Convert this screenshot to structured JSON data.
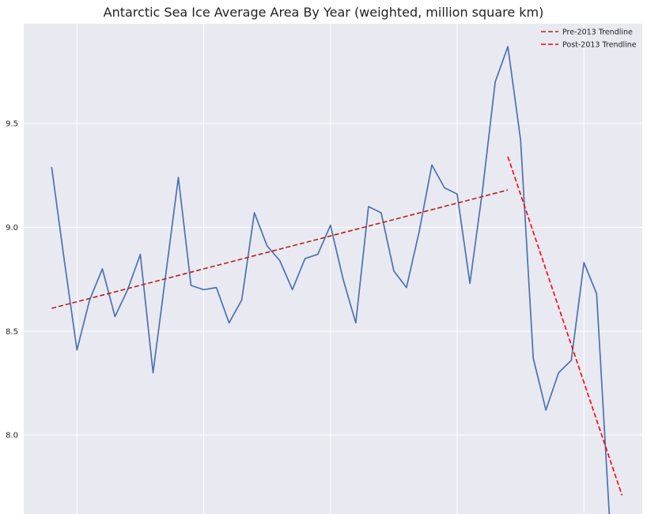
{
  "chart_data": {
    "type": "line",
    "title": "Antarctic Sea Ice Average Area By Year (weighted, million square km)",
    "xlabel": "",
    "ylabel": "",
    "x_range": [
      1976.8,
      2025.6
    ],
    "ylim": [
      7.62,
      9.98
    ],
    "x_gridlines": [
      1981,
      1991,
      2001,
      2011,
      2021
    ],
    "y_ticks": [
      8.0,
      8.5,
      9.0,
      9.5
    ],
    "y_tick_labels": [
      "8.0",
      "8.5",
      "9.0",
      "9.5"
    ],
    "grid": true,
    "legend_position": "top-right",
    "background": "#e9e9f1",
    "series": [
      {
        "color": "#4c72b0",
        "x": [
          1979,
          1980,
          1981,
          1982,
          1983,
          1984,
          1985,
          1986,
          1987,
          1988,
          1989,
          1990,
          1991,
          1992,
          1993,
          1994,
          1995,
          1996,
          1997,
          1998,
          1999,
          2000,
          2001,
          2002,
          2003,
          2004,
          2005,
          2006,
          2007,
          2008,
          2009,
          2010,
          2011,
          2012,
          2013,
          2014,
          2015,
          2016,
          2017,
          2018,
          2019,
          2020,
          2021,
          2022,
          2023
        ],
        "values": [
          9.29,
          8.84,
          8.41,
          8.65,
          8.8,
          8.57,
          8.7,
          8.87,
          8.3,
          8.77,
          9.24,
          8.72,
          8.7,
          8.71,
          8.54,
          8.65,
          9.07,
          8.91,
          8.84,
          8.7,
          8.85,
          8.87,
          9.01,
          8.75,
          8.54,
          9.1,
          9.07,
          8.79,
          8.71,
          8.98,
          9.3,
          9.19,
          9.16,
          8.73,
          9.18,
          9.7,
          9.87,
          9.42,
          8.37,
          8.12,
          8.3,
          8.36,
          8.83,
          8.68,
          7.62
        ]
      },
      {
        "name": "Pre-2013 Trendline",
        "color": "#b22222",
        "dash": "dashed",
        "x": [
          1979,
          2015
        ],
        "values": [
          8.61,
          9.18
        ]
      },
      {
        "name": "Post-2013 Trendline",
        "color": "#ff0000",
        "dash": "dashed",
        "x": [
          2015,
          2024
        ],
        "values": [
          9.34,
          7.71
        ]
      }
    ]
  }
}
